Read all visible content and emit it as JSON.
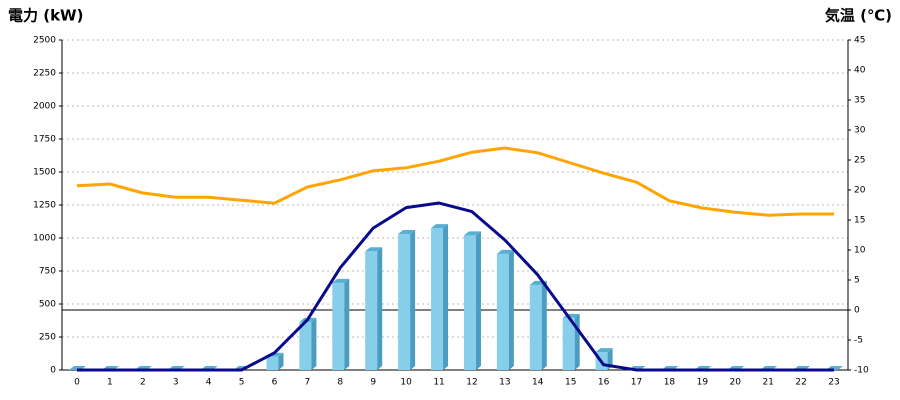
{
  "chart_data": {
    "type": "bar-line",
    "title_left": "電力 (kW)",
    "title_right": "気温 (℃)",
    "left_color": "#1f6fb5",
    "right_color": "#f08a00",
    "categories": [
      "0",
      "1",
      "2",
      "3",
      "4",
      "5",
      "6",
      "7",
      "8",
      "9",
      "10",
      "11",
      "12",
      "13",
      "14",
      "15",
      "16",
      "17",
      "18",
      "19",
      "20",
      "21",
      "22",
      "23"
    ],
    "ylim": [
      0,
      2500
    ],
    "yticks": [
      0,
      250,
      500,
      750,
      1000,
      1250,
      1500,
      1750,
      2000,
      2250,
      2500
    ],
    "y2lim": [
      -10,
      45
    ],
    "y2ticks": [
      -10,
      -5,
      0,
      5,
      10,
      15,
      20,
      25,
      30,
      35,
      40,
      45
    ],
    "grid": true,
    "series": [
      {
        "type": "bar",
        "color": "#87ceeb",
        "values": [
          0,
          0,
          0,
          0,
          0,
          0,
          100,
          365,
          660,
          900,
          1030,
          1075,
          1020,
          880,
          645,
          395,
          135,
          0,
          0,
          0,
          0,
          0,
          0,
          0
        ]
      },
      {
        "type": "line",
        "color": "#0a0a8c",
        "values": [
          0,
          0,
          0,
          0,
          0,
          0,
          130,
          380,
          775,
          1075,
          1230,
          1265,
          1200,
          985,
          720,
          380,
          40,
          0,
          0,
          0,
          0,
          0,
          0,
          0
        ]
      },
      {
        "type": "line",
        "axis": "y2",
        "color": "#ffa500",
        "values": [
          20.7,
          21,
          19.5,
          18.8,
          18.8,
          18.3,
          17.8,
          20.5,
          21.7,
          23.2,
          23.7,
          24.8,
          26.3,
          27,
          26.2,
          24.5,
          22.8,
          21.3,
          18.2,
          17,
          16.3,
          15.8,
          16,
          16
        ]
      }
    ]
  }
}
